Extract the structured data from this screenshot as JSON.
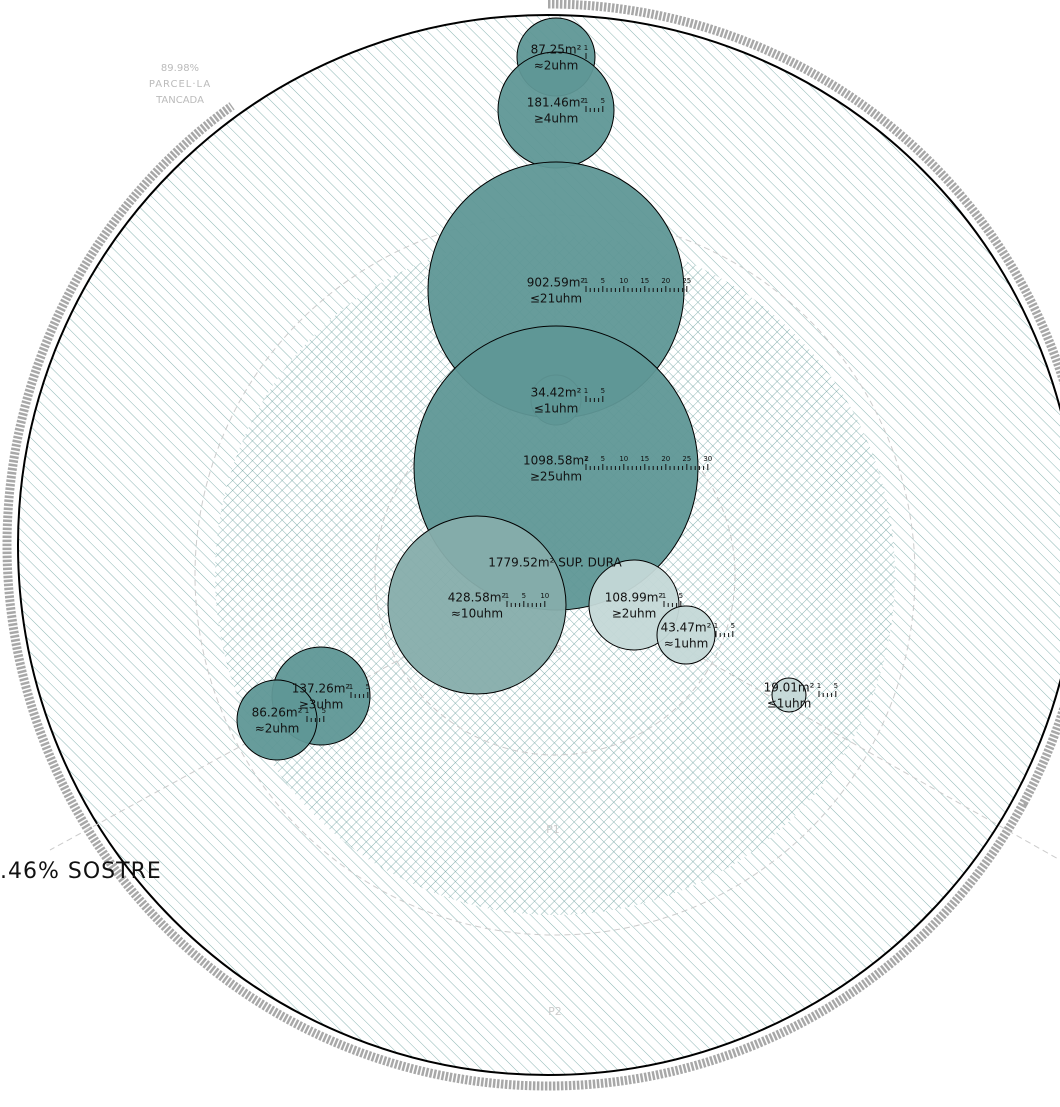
{
  "site": {
    "label_pct": "89.98%",
    "label_1": "PARCEL·LA",
    "label_2": "TANCADA"
  },
  "roof_label": ".46% SOSTRE",
  "hard_surface": "1779.52m² SUP. DURA",
  "levels": [
    "P0",
    "P1",
    "P2"
  ],
  "bubbles": [
    {
      "area": "87.25m²",
      "units": "≈2uhm",
      "scale": [
        1
      ]
    },
    {
      "area": "181.46m²",
      "units": "≥4uhm",
      "scale": [
        1,
        5
      ]
    },
    {
      "area": "902.59m²",
      "units": "≤21uhm",
      "scale": [
        1,
        5,
        10,
        15,
        20,
        25
      ]
    },
    {
      "area": "34.42m²",
      "units": "≤1uhm",
      "scale": [
        1,
        5
      ]
    },
    {
      "area": "1098.58m²",
      "units": "≥25uhm",
      "scale": [
        1,
        5,
        10,
        15,
        20,
        25,
        30
      ]
    },
    {
      "area": "428.58m²",
      "units": "≈10uhm",
      "scale": [
        1,
        5,
        10
      ]
    },
    {
      "area": "108.99m²",
      "units": "≥2uhm",
      "scale": [
        1,
        5
      ]
    },
    {
      "area": "43.47m²",
      "units": "≈1uhm",
      "scale": [
        1,
        5
      ]
    },
    {
      "area": "19.01m²",
      "units": "≤1uhm",
      "scale": [
        1,
        5
      ]
    },
    {
      "area": "137.26m²",
      "units": "≥3uhm",
      "scale": [
        1,
        5
      ]
    },
    {
      "area": "86.26m²",
      "units": "≈2uhm",
      "scale": [
        1,
        5
      ]
    }
  ]
}
